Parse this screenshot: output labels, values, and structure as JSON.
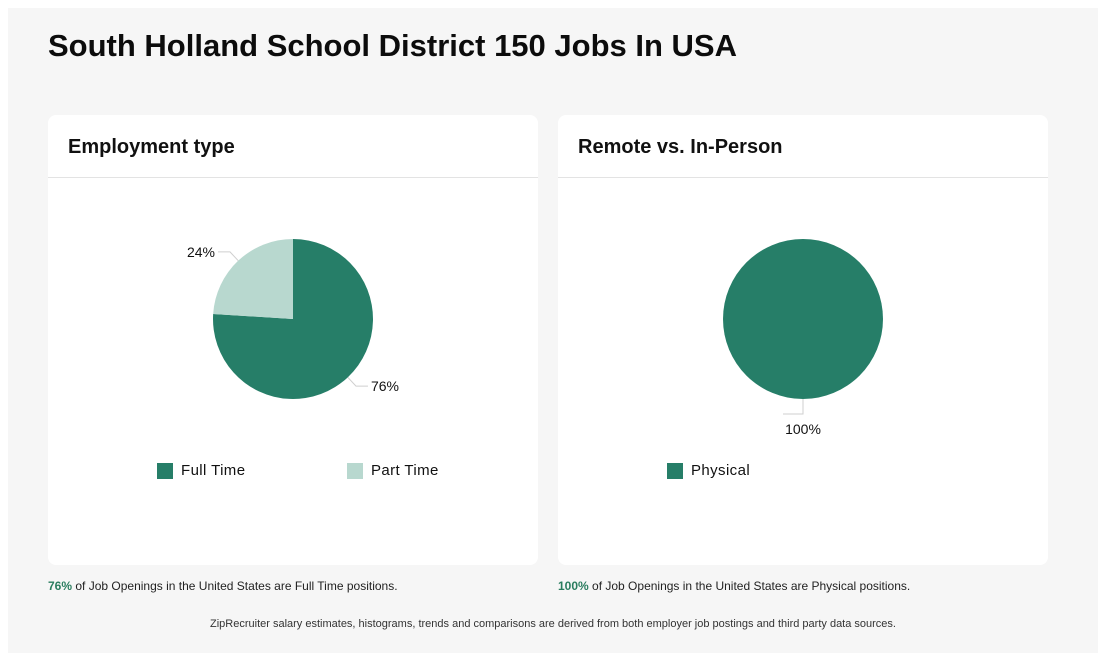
{
  "page": {
    "title": "South Holland School District 150 Jobs In USA",
    "disclaimer": "ZipRecruiter salary estimates, histograms, trends and comparisons are derived from both employer job postings and third party data sources."
  },
  "colors": {
    "primary": "#267e68",
    "secondary": "#b8d8cf",
    "accent_text": "#2a7d5f"
  },
  "chart_data": [
    {
      "type": "pie",
      "title": "Employment type",
      "categories": [
        "Full Time",
        "Part Time"
      ],
      "values": [
        76,
        24
      ],
      "value_labels": [
        "76%",
        "24%"
      ],
      "colors": [
        "#267e68",
        "#b8d8cf"
      ],
      "legend_placement": "bottom"
    },
    {
      "type": "pie",
      "title": "Remote vs. In-Person",
      "categories": [
        "Physical"
      ],
      "values": [
        100
      ],
      "value_labels": [
        "100%"
      ],
      "colors": [
        "#267e68"
      ],
      "legend_placement": "bottom"
    }
  ],
  "footnotes": [
    {
      "pct": "76%",
      "text": " of Job Openings in the United States are Full Time positions."
    },
    {
      "pct": "100%",
      "text": " of Job Openings in the United States are Physical positions."
    }
  ]
}
